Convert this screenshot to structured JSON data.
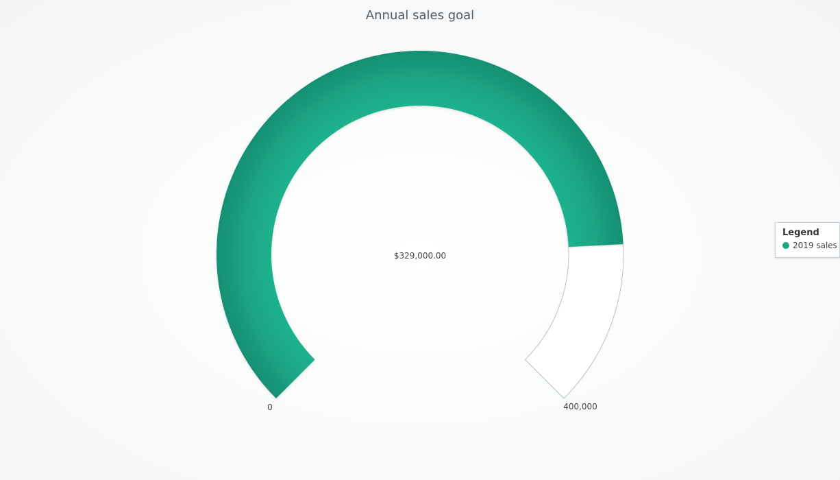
{
  "chart_data": {
    "type": "gauge",
    "title": "Annual sales goal",
    "min": 0,
    "max": 400000,
    "value": 329000,
    "value_label": "$329,000.00",
    "min_label": "0",
    "max_label": "400,000",
    "series": [
      {
        "name": "2019 sales",
        "value": 329000,
        "color": "#1aa783"
      }
    ],
    "legend": {
      "title": "Legend",
      "placement": "right"
    }
  },
  "colors": {
    "fill_light": "#1db28d",
    "fill_dark": "#178f72",
    "remainder": "#ffffff",
    "remainder_stroke": "#b6c1ca"
  }
}
